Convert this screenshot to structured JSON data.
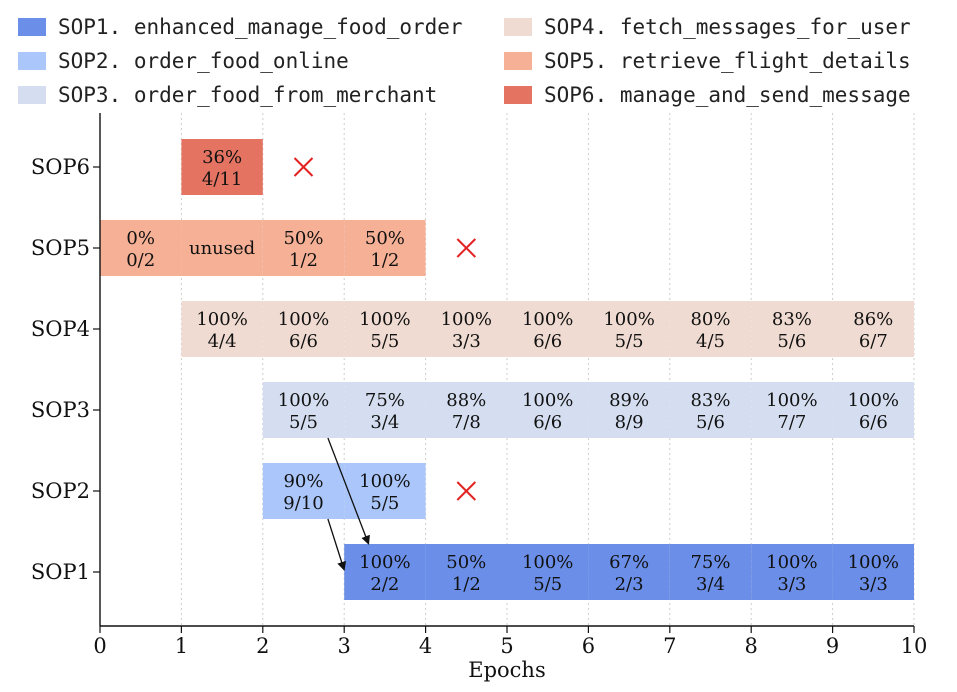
{
  "chart_data": {
    "type": "gantt",
    "xlabel": "Epochs",
    "xlim": [
      0,
      10
    ],
    "xticks": [
      "0",
      "1",
      "2",
      "3",
      "4",
      "5",
      "6",
      "7",
      "8",
      "9",
      "10"
    ],
    "legend_position": "top",
    "grid": "vertical-dotted",
    "rows": [
      {
        "id": "SOP1",
        "legend": "SOP1. enhanced_manage_food_order",
        "color": "#6b8fe8",
        "cells": [
          {
            "start": 3,
            "pct": "100%",
            "frac": "2/2"
          },
          {
            "start": 4,
            "pct": "50%",
            "frac": "1/2"
          },
          {
            "start": 5,
            "pct": "100%",
            "frac": "5/5"
          },
          {
            "start": 6,
            "pct": "67%",
            "frac": "2/3"
          },
          {
            "start": 7,
            "pct": "75%",
            "frac": "3/4"
          },
          {
            "start": 8,
            "pct": "100%",
            "frac": "3/3"
          },
          {
            "start": 9,
            "pct": "100%",
            "frac": "3/3"
          }
        ],
        "end_marker": null
      },
      {
        "id": "SOP2",
        "legend": "SOP2. order_food_online",
        "color": "#aac6fb",
        "cells": [
          {
            "start": 2,
            "pct": "90%",
            "frac": "9/10"
          },
          {
            "start": 3,
            "pct": "100%",
            "frac": "5/5"
          }
        ],
        "end_marker": 4.5
      },
      {
        "id": "SOP3",
        "legend": "SOP3. order_food_from_merchant",
        "color": "#d4def0",
        "cells": [
          {
            "start": 2,
            "pct": "100%",
            "frac": "5/5"
          },
          {
            "start": 3,
            "pct": "75%",
            "frac": "3/4"
          },
          {
            "start": 4,
            "pct": "88%",
            "frac": "7/8"
          },
          {
            "start": 5,
            "pct": "100%",
            "frac": "6/6"
          },
          {
            "start": 6,
            "pct": "89%",
            "frac": "8/9"
          },
          {
            "start": 7,
            "pct": "83%",
            "frac": "5/6"
          },
          {
            "start": 8,
            "pct": "100%",
            "frac": "7/7"
          },
          {
            "start": 9,
            "pct": "100%",
            "frac": "6/6"
          }
        ],
        "end_marker": null
      },
      {
        "id": "SOP4",
        "legend": "SOP4. fetch_messages_for_user",
        "color": "#efdbd1",
        "cells": [
          {
            "start": 1,
            "pct": "100%",
            "frac": "4/4"
          },
          {
            "start": 2,
            "pct": "100%",
            "frac": "6/6"
          },
          {
            "start": 3,
            "pct": "100%",
            "frac": "5/5"
          },
          {
            "start": 4,
            "pct": "100%",
            "frac": "3/3"
          },
          {
            "start": 5,
            "pct": "100%",
            "frac": "6/6"
          },
          {
            "start": 6,
            "pct": "100%",
            "frac": "5/5"
          },
          {
            "start": 7,
            "pct": "80%",
            "frac": "4/5"
          },
          {
            "start": 8,
            "pct": "83%",
            "frac": "5/6"
          },
          {
            "start": 9,
            "pct": "86%",
            "frac": "6/7"
          }
        ],
        "end_marker": null
      },
      {
        "id": "SOP5",
        "legend": "SOP5. retrieve_flight_details",
        "color": "#f6b095",
        "cells": [
          {
            "start": 0,
            "pct": "0%",
            "frac": "0/2"
          },
          {
            "start": 1,
            "single": "unused"
          },
          {
            "start": 2,
            "pct": "50%",
            "frac": "1/2"
          },
          {
            "start": 3,
            "pct": "50%",
            "frac": "1/2"
          }
        ],
        "end_marker": 4.5
      },
      {
        "id": "SOP6",
        "legend": "SOP6. manage_and_send_message",
        "color": "#e47361",
        "cells": [
          {
            "start": 1,
            "pct": "36%",
            "frac": "4/11"
          }
        ],
        "end_marker": 2.5
      }
    ],
    "arrows": [
      {
        "from": [
          2.8,
          "SOP2"
        ],
        "to": [
          3.0,
          "SOP1"
        ]
      },
      {
        "from": [
          2.8,
          "SOP3"
        ],
        "to": [
          3.3,
          "SOP1"
        ]
      }
    ],
    "marker_color": "#e32222"
  }
}
